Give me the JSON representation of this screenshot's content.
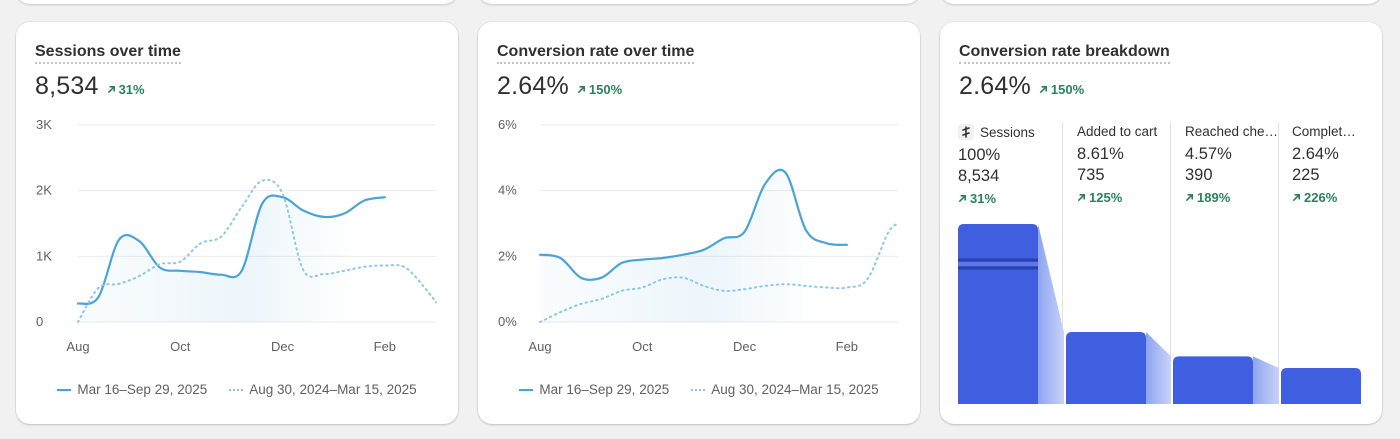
{
  "sessions": {
    "title": "Sessions over time",
    "value": "8,534",
    "delta": "31%",
    "legend": [
      "Mar 16–Sep 29, 2025",
      "Aug 30, 2024–Mar 15, 2025"
    ]
  },
  "conversion": {
    "title": "Conversion rate over time",
    "value": "2.64%",
    "delta": "150%",
    "legend": [
      "Mar 16–Sep 29, 2025",
      "Aug 30, 2024–Mar 15, 2025"
    ]
  },
  "breakdown": {
    "title": "Conversion rate breakdown",
    "value": "2.64%",
    "delta": "150%",
    "steps": [
      {
        "label": "Sessions",
        "pct": "100%",
        "count": "8,534",
        "delta": "31%"
      },
      {
        "label": "Added to cart",
        "pct": "8.61%",
        "count": "735",
        "delta": "125%"
      },
      {
        "label": "Reached che…",
        "pct": "4.57%",
        "count": "390",
        "delta": "189%"
      },
      {
        "label": "Complet…",
        "pct": "2.64%",
        "count": "225",
        "delta": "226%"
      }
    ]
  },
  "colors": {
    "current_line": "#4ba3d9",
    "previous_line": "#8ec8e8",
    "funnel_bar": "#3f5ee0",
    "positive": "#29845a"
  },
  "chart_data": [
    {
      "type": "line",
      "title": "Sessions over time",
      "x_tick_labels": [
        "Aug",
        "Oct",
        "Dec",
        "Feb"
      ],
      "y_tick_labels": [
        "0",
        "1K",
        "2K",
        "3K"
      ],
      "ylim": [
        0,
        3000
      ],
      "grid": true,
      "legend_placement": "bottom",
      "x": [
        0,
        0.2,
        0.4,
        0.6,
        0.8,
        1.0,
        1.2,
        1.4,
        1.6,
        1.8,
        2.0,
        2.2,
        2.4,
        2.6,
        2.8,
        3.0,
        3.2,
        3.4,
        3.5
      ],
      "series": [
        {
          "name": "Mar 16–Sep 29, 2025",
          "style": "solid",
          "values": [
            280,
            380,
            1250,
            1230,
            830,
            780,
            760,
            720,
            780,
            1800,
            1900,
            1700,
            1600,
            1650,
            1850,
            1900,
            null,
            null,
            null
          ]
        },
        {
          "name": "Aug 30, 2024–Mar 15, 2025",
          "style": "dotted",
          "values": [
            0,
            520,
            580,
            700,
            880,
            920,
            1200,
            1300,
            1750,
            2150,
            1950,
            800,
            730,
            780,
            840,
            860,
            830,
            500,
            300
          ]
        }
      ]
    },
    {
      "type": "line",
      "title": "Conversion rate over time",
      "x_tick_labels": [
        "Aug",
        "Oct",
        "Dec",
        "Feb"
      ],
      "y_tick_labels": [
        "0%",
        "2%",
        "4%",
        "6%"
      ],
      "ylim": [
        0,
        6
      ],
      "grid": true,
      "legend_placement": "bottom",
      "x": [
        0,
        0.2,
        0.4,
        0.6,
        0.8,
        1.0,
        1.2,
        1.4,
        1.6,
        1.8,
        2.0,
        2.2,
        2.4,
        2.6,
        2.8,
        3.0,
        3.2,
        3.4,
        3.5
      ],
      "series": [
        {
          "name": "Mar 16–Sep 29, 2025",
          "style": "solid",
          "values": [
            2.05,
            1.95,
            1.35,
            1.35,
            1.8,
            1.9,
            1.95,
            2.05,
            2.2,
            2.55,
            2.75,
            4.2,
            4.55,
            2.8,
            2.4,
            2.35,
            null,
            null,
            null
          ]
        },
        {
          "name": "Aug 30, 2024–Mar 15, 2025",
          "style": "dotted",
          "values": [
            0,
            0.3,
            0.55,
            0.7,
            0.95,
            1.05,
            1.3,
            1.35,
            1.1,
            0.95,
            1.0,
            1.1,
            1.15,
            1.1,
            1.05,
            1.05,
            1.3,
            2.7,
            3.0
          ]
        }
      ]
    },
    {
      "type": "bar",
      "title": "Conversion rate breakdown",
      "categories": [
        "Sessions",
        "Added to cart",
        "Reached che…",
        "Complet…"
      ],
      "values": [
        100,
        8.61,
        4.57,
        2.64
      ],
      "counts": [
        8534,
        735,
        390,
        225
      ]
    }
  ]
}
